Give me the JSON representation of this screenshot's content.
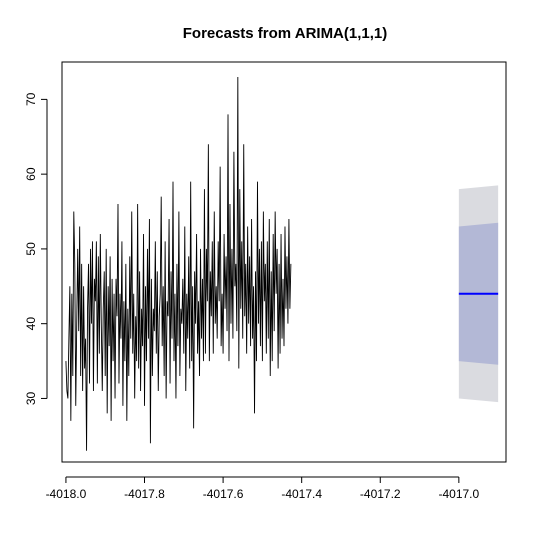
{
  "chart_data": {
    "type": "line",
    "title": "Forecasts from ARIMA(1,1,1)",
    "xlabel": "",
    "ylabel": "",
    "xlim": [
      -4018.01,
      -4016.88
    ],
    "ylim": [
      21.5,
      75
    ],
    "x_ticks": [
      -4018.0,
      -4017.8,
      -4017.6,
      -4017.4,
      -4017.2,
      -4017.0
    ],
    "x_tick_labels": [
      "-4018.0",
      "-4017.8",
      "-4017.6",
      "-4017.4",
      "-4017.2",
      "-4017.0"
    ],
    "y_ticks": [
      30,
      40,
      50,
      60,
      70
    ],
    "y_tick_labels": [
      "30",
      "40",
      "50",
      "60",
      "70"
    ],
    "grid": false,
    "colors": {
      "observed": "#000000",
      "forecast_mean": "#0000ff",
      "interval_80": "#b3b8d6",
      "interval_95": "#dadbe0"
    },
    "series": [
      {
        "role": "observed",
        "x_start": -4018.0,
        "x_step": 0.0025,
        "values": [
          35,
          31,
          30,
          38,
          45,
          27,
          44,
          33,
          55,
          48,
          29,
          40,
          50,
          39,
          53,
          33,
          48,
          31,
          45,
          34,
          38,
          23,
          42,
          48,
          32,
          50,
          40,
          51,
          31,
          46,
          43,
          51,
          32,
          49,
          36,
          52,
          40,
          31,
          42,
          47,
          33,
          50,
          28,
          45,
          37,
          49,
          27,
          46,
          35,
          44,
          30,
          46,
          41,
          56,
          32,
          44,
          38,
          51,
          29,
          43,
          35,
          48,
          27,
          42,
          33,
          49,
          38,
          55,
          36,
          44,
          30,
          41,
          35,
          56,
          34,
          47,
          31,
          42,
          37,
          52,
          29,
          45,
          35,
          50,
          38,
          54,
          24,
          46,
          33,
          42,
          39,
          51,
          36,
          47,
          31,
          41,
          44,
          57,
          37,
          45,
          33,
          51,
          30,
          43,
          41,
          54,
          32,
          47,
          38,
          59,
          35,
          44,
          30,
          48,
          37,
          55,
          33,
          42,
          40,
          46,
          36,
          53,
          31,
          44,
          38,
          49,
          34,
          59,
          35,
          45,
          26,
          47,
          40,
          52,
          36,
          43,
          33,
          50,
          38,
          46,
          35,
          58,
          36,
          50,
          43,
          64,
          35,
          47,
          41,
          51,
          36,
          55,
          40,
          45,
          38,
          51,
          43,
          61,
          37,
          44,
          36,
          52,
          42,
          49,
          39,
          68,
          35,
          56,
          40,
          50,
          38,
          63,
          45,
          48,
          39,
          73,
          34,
          58,
          42,
          51,
          38,
          64,
          41,
          48,
          36,
          53,
          40,
          49,
          37,
          54,
          38,
          45,
          28,
          47,
          35,
          59,
          40,
          50,
          37,
          51,
          35,
          55,
          43,
          48,
          36,
          51,
          38,
          54,
          33,
          47,
          35,
          52,
          39,
          55,
          44,
          50,
          34,
          48,
          36,
          52,
          38,
          46,
          37,
          53,
          42,
          49,
          40,
          54,
          42,
          48
        ]
      }
    ],
    "forecast": {
      "x_start": -4017.0,
      "x_end": -4016.9,
      "mean": 44,
      "interval_80": {
        "lower_start": 35,
        "lower_end": 34.5,
        "upper_start": 53,
        "upper_end": 53.5
      },
      "interval_95": {
        "lower_start": 30,
        "lower_end": 29.5,
        "upper_start": 58,
        "upper_end": 58.5
      }
    }
  }
}
